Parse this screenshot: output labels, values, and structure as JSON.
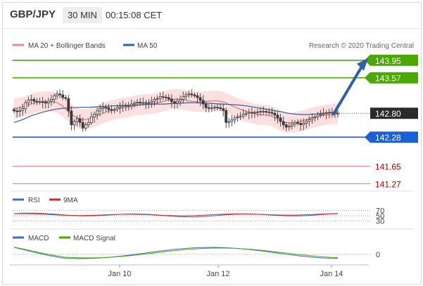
{
  "header": {
    "pair": "GBP/JPY",
    "timeframe": "30 MIN",
    "time": "00:15:08 CET"
  },
  "legend": {
    "ma20": "MA 20 + Bollinger Bands",
    "ma50": "MA 50",
    "source": "Research © 2020 Trading Central"
  },
  "colors": {
    "green": "#4ba800",
    "blue": "#1a5fd6",
    "red": "#ee8a8a",
    "candle": "#3a3a3a",
    "ma20": "#f07070",
    "ma50": "#2f5f9f",
    "band": "#fbd6d6",
    "price_tag": "#2b2b2b",
    "arrow": "#2f5fa5"
  },
  "chart_data": [
    {
      "type": "candlestick",
      "title": "GBP/JPY",
      "ylim": [
        141.2,
        144.1
      ],
      "x_tick_labels": [
        "Jan 10",
        "Jan 12",
        "Jan 14"
      ],
      "current_price": 142.8,
      "levels": [
        {
          "value": 143.95,
          "label": "143.95",
          "kind": "resistance"
        },
        {
          "value": 143.57,
          "label": "143.57",
          "kind": "resistance"
        },
        {
          "value": 142.28,
          "label": "142.28",
          "kind": "pivot"
        },
        {
          "value": 141.65,
          "label": "141.65",
          "kind": "support"
        },
        {
          "value": 141.27,
          "label": "141.27",
          "kind": "support"
        }
      ],
      "close": [
        142.85,
        142.84,
        142.86,
        142.9,
        143.03,
        143.08,
        143.1,
        143.06,
        143.04,
        143.05,
        143.04,
        143.02,
        143.06,
        143.1,
        143.18,
        143.22,
        143.2,
        143.14,
        143.12,
        142.85,
        142.55,
        142.62,
        142.68,
        142.6,
        142.48,
        142.55,
        142.6,
        142.72,
        142.78,
        142.85,
        142.9,
        142.93,
        142.92,
        142.88,
        142.86,
        142.88,
        142.92,
        142.95,
        142.97,
        142.96,
        142.97,
        143.0,
        143.02,
        143.04,
        143.02,
        143.03,
        143.02,
        143.03,
        143.06,
        143.1,
        143.12,
        143.16,
        143.15,
        143.14,
        143.11,
        143.05,
        143.02,
        143.06,
        143.1,
        143.16,
        143.2,
        143.22,
        143.2,
        143.18,
        143.14,
        143.08,
        143.0,
        142.92,
        142.91,
        142.92,
        142.93,
        142.92,
        142.9,
        142.86,
        142.6,
        142.62,
        142.66,
        142.7,
        142.72,
        142.74,
        142.78,
        142.8,
        142.82,
        142.81,
        142.82,
        142.83,
        142.84,
        142.84,
        142.83,
        142.82,
        142.8,
        142.76,
        142.7,
        142.62,
        142.55,
        142.5,
        142.52,
        142.56,
        142.6,
        142.58,
        142.55,
        142.58,
        142.62,
        142.66,
        142.7,
        142.72,
        142.76,
        142.78,
        142.8,
        142.81,
        142.82,
        142.82,
        142.8,
        142.8
      ],
      "ma20": [
        142.9,
        142.92,
        142.95,
        142.99,
        143.03,
        143.05,
        143.06,
        143.05,
        143.04,
        142.98,
        142.88,
        142.78,
        142.7,
        142.66,
        142.67,
        142.71,
        142.75,
        142.8,
        142.84,
        142.87,
        142.9,
        142.92,
        142.94,
        142.96,
        142.98,
        142.99,
        143.0,
        143.02,
        143.04,
        143.07,
        143.1,
        143.11,
        143.1,
        143.08,
        143.06,
        143.05,
        143.05,
        143.06,
        143.07,
        143.07,
        143.05,
        143.0,
        142.95,
        142.9,
        142.86,
        142.82,
        142.79,
        142.77,
        142.76,
        142.75,
        142.7,
        142.64,
        142.6,
        142.59,
        142.6,
        142.63,
        142.66,
        142.7,
        142.73,
        142.75,
        142.77,
        142.78,
        142.79
      ],
      "ma50": [
        142.6,
        142.66,
        142.74,
        142.8,
        142.85,
        142.89,
        142.91,
        142.92,
        142.93,
        142.93,
        142.94,
        142.95,
        142.96,
        142.97,
        142.97,
        142.98,
        142.99,
        143.0,
        143.0,
        143.01,
        143.02,
        143.03,
        143.03,
        143.02,
        143.01,
        143.0,
        142.99,
        142.98,
        142.96,
        142.93,
        142.9,
        142.87,
        142.84,
        142.8,
        142.78,
        142.77,
        142.78,
        142.8,
        142.81,
        142.82
      ]
    },
    {
      "type": "line",
      "title": "RSI",
      "series": [
        {
          "name": "RSI"
        },
        {
          "name": "9MA"
        }
      ],
      "y_ticks": [
        70,
        50,
        30
      ],
      "ylim": [
        20,
        80
      ]
    },
    {
      "type": "line",
      "title": "MACD",
      "series": [
        {
          "name": "MACD"
        },
        {
          "name": "MACD Signal"
        }
      ],
      "y_ticks": [
        0
      ]
    }
  ]
}
